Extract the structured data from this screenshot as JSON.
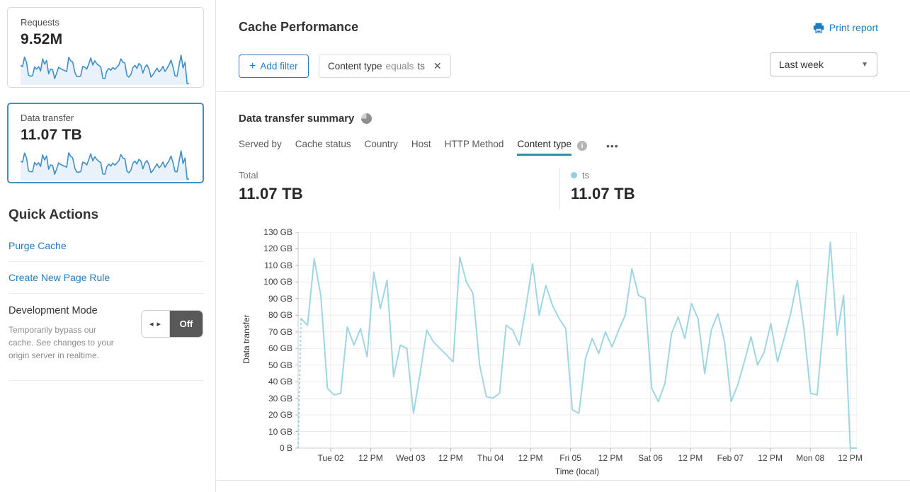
{
  "sidebar": {
    "requests_card": {
      "label": "Requests",
      "value": "9.52M",
      "sparkline": [
        59,
        55,
        86,
        68,
        27,
        24,
        25,
        54,
        47,
        55,
        41,
        80,
        63,
        75,
        32,
        47,
        45,
        16,
        34,
        53,
        48,
        45,
        42,
        39,
        85,
        74,
        70,
        38,
        23,
        22,
        25,
        56,
        53,
        47,
        63,
        83,
        60,
        74,
        64,
        59,
        54,
        17,
        16,
        41,
        49,
        43,
        52,
        46,
        53,
        60,
        80,
        69,
        67,
        27,
        21,
        29,
        52,
        59,
        49,
        65,
        59,
        34,
        53,
        61,
        48,
        21,
        29,
        39,
        50,
        38,
        44,
        56,
        39,
        49,
        61,
        76,
        54,
        25,
        24,
        58,
        92,
        51,
        69,
        0,
        0
      ]
    },
    "data_transfer_card": {
      "label": "Data transfer",
      "value": "11.07 TB",
      "selected": true,
      "sparkline": [
        78,
        74,
        114,
        92,
        36,
        32,
        33,
        73,
        62,
        72,
        55,
        106,
        84,
        101,
        43,
        62,
        60,
        21,
        45,
        71,
        64,
        60,
        56,
        52,
        115,
        100,
        93,
        50,
        31,
        30,
        33,
        74,
        71,
        62,
        85,
        111,
        80,
        98,
        86,
        78,
        72,
        23,
        21,
        54,
        66,
        57,
        70,
        61,
        71,
        80,
        108,
        92,
        90,
        36,
        28,
        39,
        69,
        79,
        66,
        87,
        78,
        45,
        71,
        81,
        64,
        28,
        38,
        52,
        67,
        50,
        58,
        75,
        52,
        66,
        81,
        101,
        72,
        33,
        32,
        77,
        124,
        68,
        92,
        0,
        0
      ]
    },
    "quick_actions": {
      "title": "Quick Actions",
      "links": [
        {
          "label": "Purge Cache"
        },
        {
          "label": "Create New Page Rule"
        }
      ],
      "development_mode": {
        "title": "Development Mode",
        "description": "Temporarily bypass our cache. See changes to your origin server in realtime.",
        "toggle_state": "Off"
      }
    }
  },
  "header": {
    "title": "Cache Performance",
    "print_report": "Print report",
    "add_filter_plus": "+",
    "add_filter_label": "Add filter",
    "filter_chip": {
      "field": "Content type",
      "operator": "equals",
      "value": "ts"
    },
    "time_range": "Last week"
  },
  "summary": {
    "title": "Data transfer summary",
    "tabs": [
      {
        "label": "Served by",
        "active": false
      },
      {
        "label": "Cache status",
        "active": false
      },
      {
        "label": "Country",
        "active": false
      },
      {
        "label": "Host",
        "active": false
      },
      {
        "label": "HTTP Method",
        "active": false
      },
      {
        "label": "Content type",
        "active": true,
        "has_info": true
      }
    ],
    "more_menu": "•••",
    "total_label": "Total",
    "total_value": "11.07 TB",
    "legend": {
      "name": "ts",
      "value": "11.07 TB"
    }
  },
  "chart_data": {
    "type": "line",
    "title": "Data transfer summary",
    "xlabel": "Time (local)",
    "ylabel": "Data transfer",
    "unit": "GB",
    "ylim": [
      0,
      130
    ],
    "y_tick_labels": [
      "0 B",
      "10 GB",
      "20 GB",
      "30 GB",
      "40 GB",
      "50 GB",
      "60 GB",
      "70 GB",
      "80 GB",
      "90 GB",
      "100 GB",
      "110 GB",
      "120 GB",
      "130 GB"
    ],
    "x_tick_labels": [
      "Tue 02",
      "12 PM",
      "Wed 03",
      "12 PM",
      "Thu 04",
      "12 PM",
      "Fri 05",
      "12 PM",
      "Sat 06",
      "12 PM",
      "Feb 07",
      "12 PM",
      "Mon 08",
      "12 PM"
    ],
    "x_tick_interval_hours": 12,
    "grid": true,
    "legend_position": "top-right",
    "series": [
      {
        "name": "ts",
        "total": "11.07 TB",
        "leadin_dashed_from_value": 0,
        "values_gb": [
          78,
          74,
          114,
          92,
          36,
          32,
          33,
          73,
          62,
          72,
          55,
          106,
          84,
          101,
          43,
          62,
          60,
          21,
          45,
          71,
          64,
          60,
          56,
          52,
          115,
          100,
          93,
          50,
          31,
          30,
          33,
          74,
          71,
          62,
          85,
          111,
          80,
          98,
          86,
          78,
          72,
          23,
          21,
          54,
          66,
          57,
          70,
          61,
          71,
          80,
          108,
          92,
          90,
          36,
          28,
          39,
          69,
          79,
          66,
          87,
          78,
          45,
          71,
          81,
          64,
          28,
          38,
          52,
          67,
          50,
          58,
          75,
          52,
          66,
          81,
          101,
          72,
          33,
          32,
          77,
          124,
          68,
          92,
          0,
          0
        ]
      }
    ]
  },
  "colors": {
    "accent_blue": "#1f7bbf",
    "chart_line": "#9fd6e3",
    "legend_dot": "#8fd0e0",
    "sparkline_stroke": "#3f8fc5",
    "sparkline_fill": "#e9f2fa",
    "selected_card_border": "#3f8fc5",
    "tab_underline": "#2e92aa",
    "toggle_off_bg": "#595959",
    "gridline": "#ebebeb"
  },
  "icons": {
    "toggle_arrows": "◂ ▸",
    "close": "✕",
    "caret": "▼",
    "info": "i",
    "plus": "+"
  }
}
